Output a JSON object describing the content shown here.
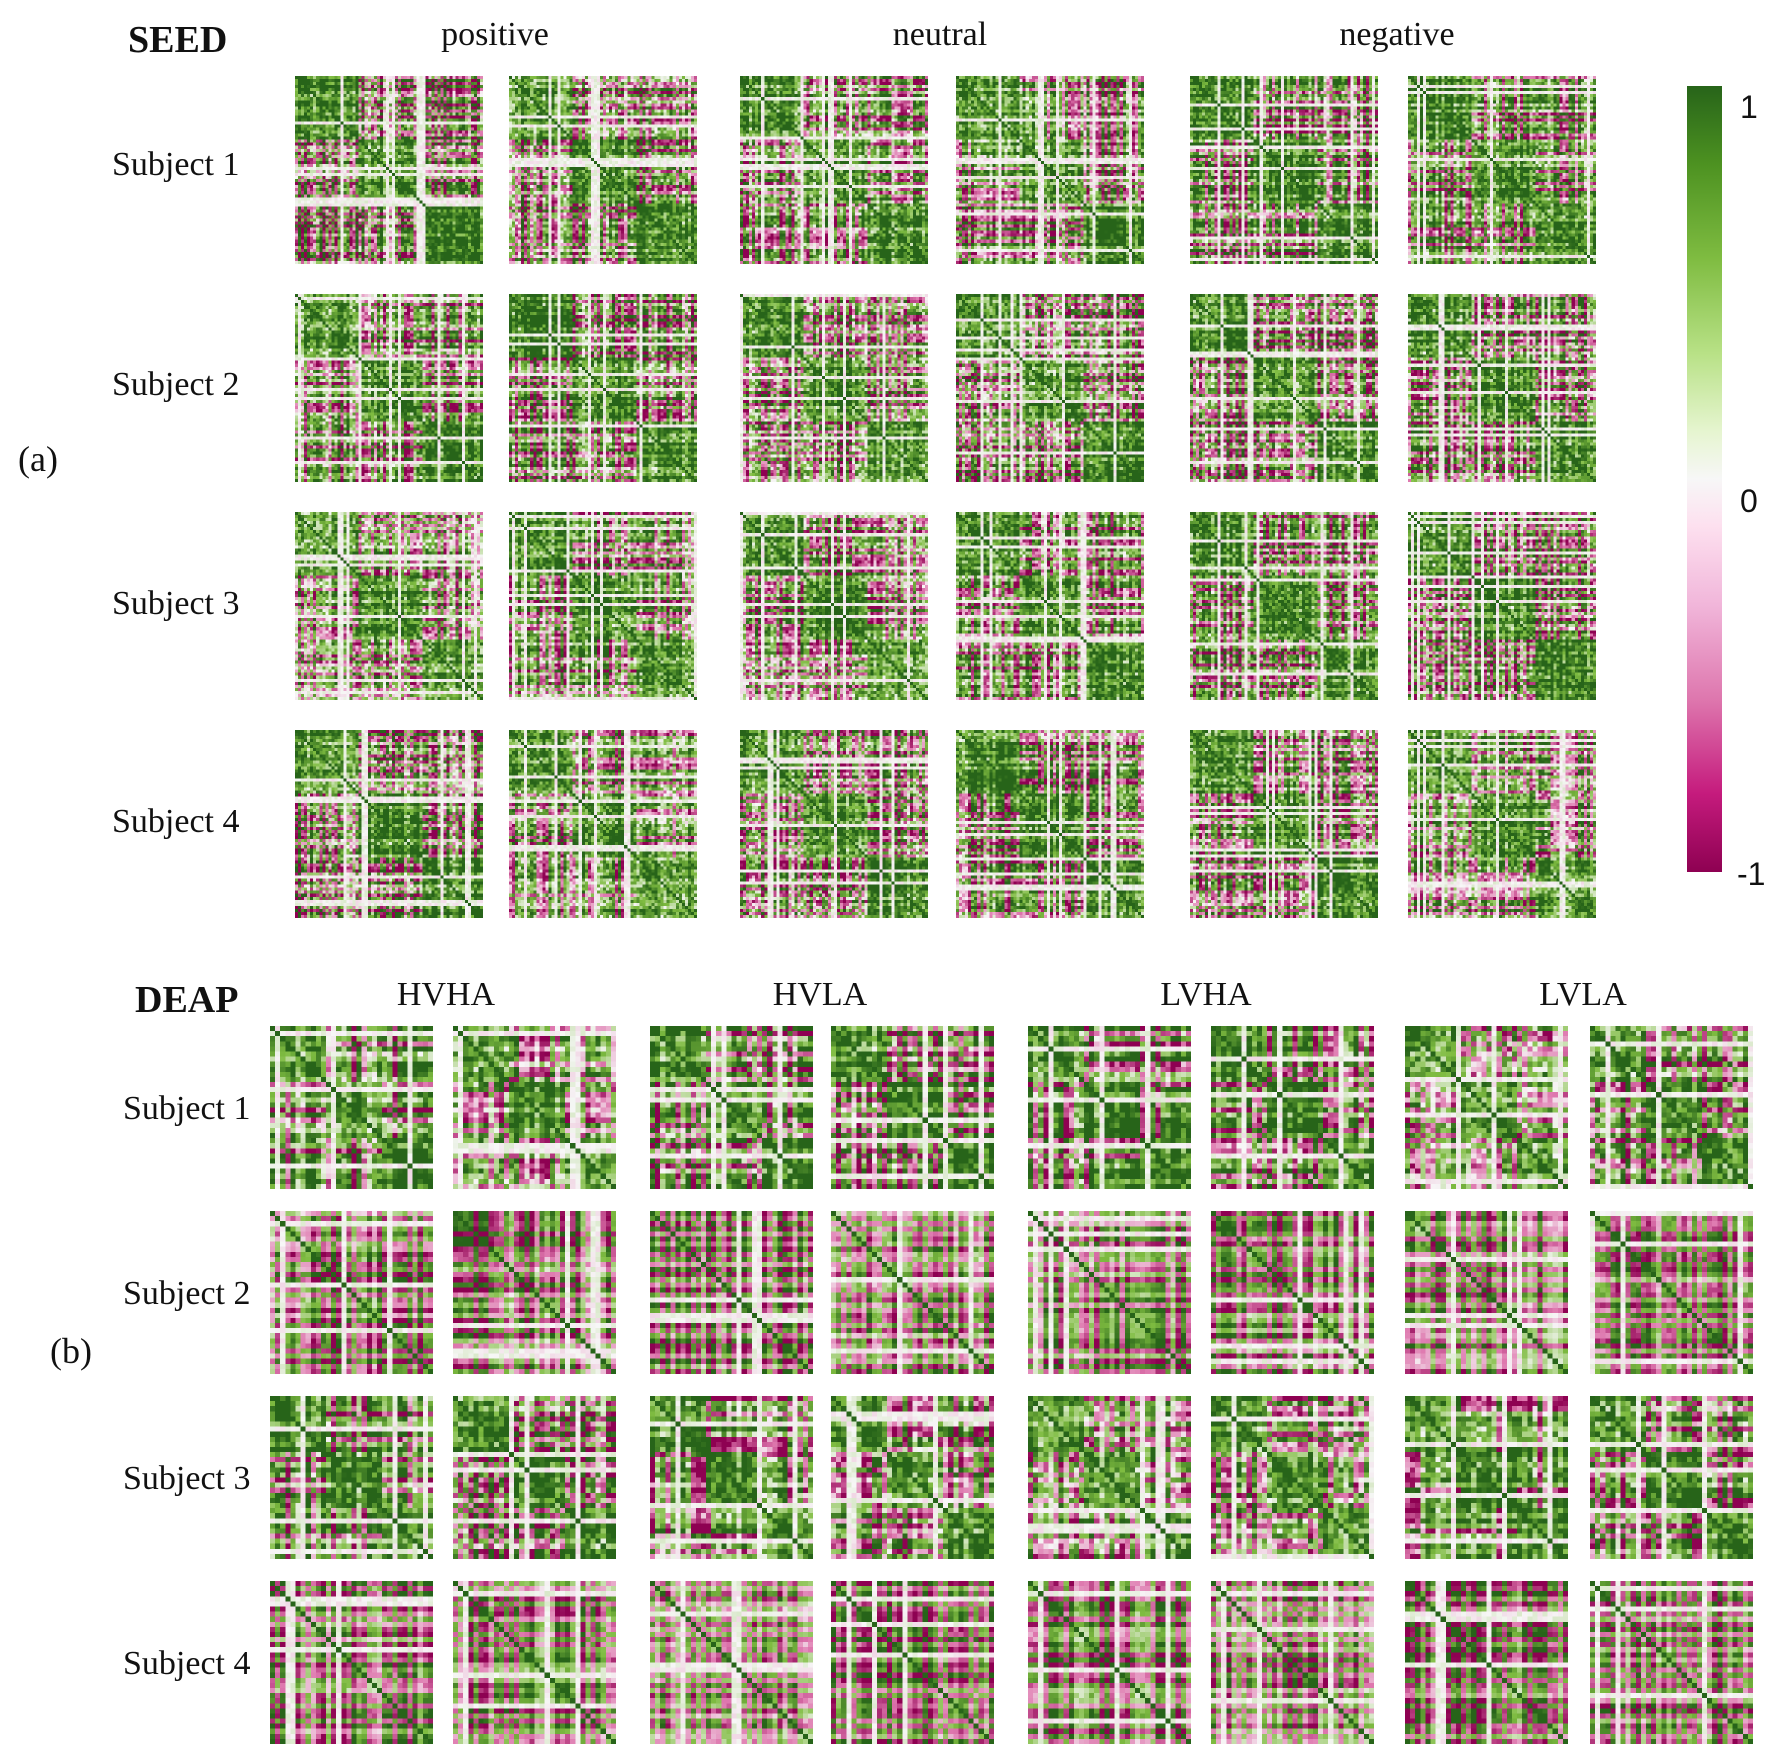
{
  "chart_data": {
    "type": "heatmap",
    "description_value_range": [
      -1,
      1
    ],
    "panels": [
      {
        "panel_label": "(a)",
        "dataset": "SEED",
        "conditions": [
          "positive",
          "neutral",
          "negative"
        ],
        "subjects": [
          "Subject 1",
          "Subject 2",
          "Subject 3",
          "Subject 4"
        ],
        "matrices_per_condition": 2
      },
      {
        "panel_label": "(b)",
        "dataset": "DEAP",
        "conditions": [
          "HVHA",
          "HVLA",
          "LVHA",
          "LVLA"
        ],
        "subjects": [
          "Subject 1",
          "Subject 2",
          "Subject 3",
          "Subject 4"
        ],
        "matrices_per_condition": 2
      }
    ],
    "colorbar": {
      "ticks": [
        "1",
        "0",
        "-1"
      ],
      "tick_values": [
        1,
        0,
        -1
      ],
      "range": [
        -1,
        1
      ],
      "colors": {
        "min": "#8e0152",
        "neg_mid": "#de77ae",
        "zero": "#f7f7f7",
        "pos_mid": "#7fbc41",
        "max": "#276419"
      }
    }
  }
}
